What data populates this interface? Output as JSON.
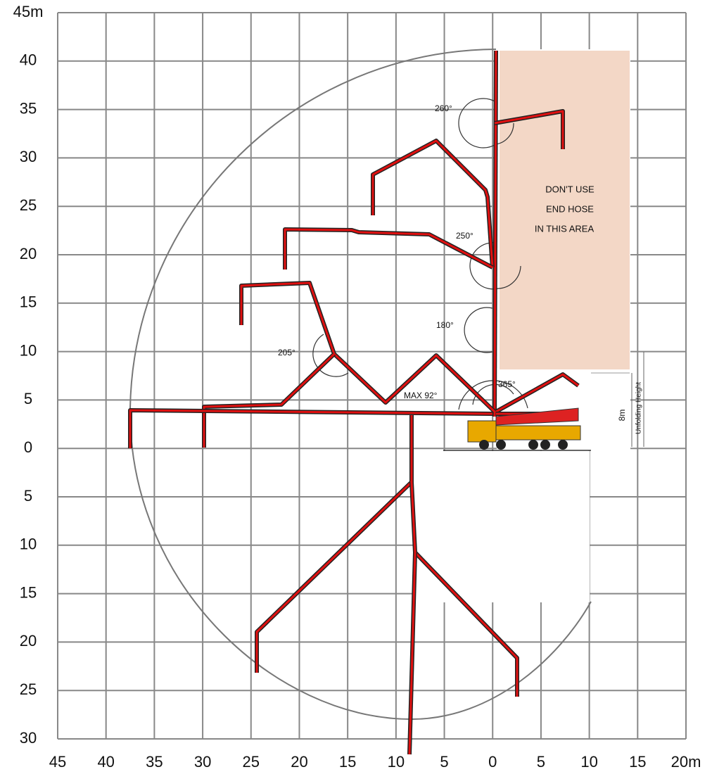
{
  "axes": {
    "x_labels": [
      "45",
      "40",
      "35",
      "30",
      "25",
      "20",
      "15",
      "10",
      "5",
      "0",
      "5",
      "10",
      "15",
      "20m"
    ],
    "y_labels": [
      "45m",
      "40",
      "35",
      "30",
      "25",
      "20",
      "15",
      "10",
      "5",
      "0",
      "5",
      "10",
      "15",
      "20",
      "25",
      "30"
    ]
  },
  "annotations": {
    "angle_260": "260°",
    "angle_250": "250°",
    "angle_180": "180°",
    "angle_205": "205°",
    "angle_365": "365°",
    "max_angle": "MAX 92°"
  },
  "warning": {
    "line1": "DON'T USE",
    "line2": "END HOSE",
    "line3": "IN THIS AREA"
  },
  "unfolding": {
    "height": "8m",
    "label": "Unfolding Height"
  }
}
